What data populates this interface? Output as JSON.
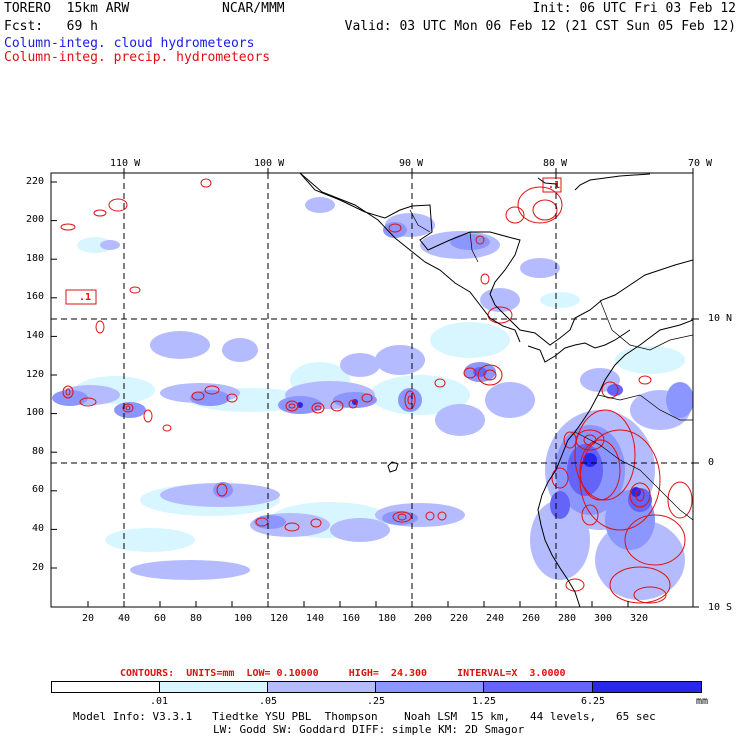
{
  "header": {
    "model": "TORERO  15km ARW",
    "org": "NCAR/MMM",
    "init": "Init: 06 UTC Fri 03 Feb 12",
    "fcst": "Fcst:   69 h",
    "valid": "Valid: 03 UTC Mon 06 Feb 12 (21 CST Sun 05 Feb 12)",
    "field1": "Column-integ. cloud hydrometeors",
    "field2": "Column-integ. precip. hydrometeors"
  },
  "map": {
    "top_lon_labels": [
      "110 W",
      "100 W",
      "90 W",
      "80 W",
      "70 W"
    ],
    "right_lat_labels": [
      "10 N",
      "0",
      "10 S"
    ],
    "left_ticks": [
      "220",
      "200",
      "180",
      "160",
      "140",
      "120",
      "100",
      "80",
      "60",
      "40",
      "20"
    ],
    "bottom_ticks": [
      "20",
      "40",
      "60",
      "80",
      "100",
      "120",
      "140",
      "160",
      "180",
      "200",
      "220",
      "240",
      "260",
      "280",
      "300",
      "320"
    ],
    "contour_labels": [
      ".1",
      ".1"
    ]
  },
  "contours_info": {
    "text": "CONTOURS:  UNITS=mm  LOW= 0.10000     HIGH=  24.300     INTERVAL=X  3.0000"
  },
  "legend": {
    "ticks": [
      ".01",
      ".05",
      ".25",
      "1.25",
      "6.25"
    ],
    "unit": "mm",
    "colors": [
      "#ffffff",
      "#d8f6ff",
      "#b4bcff",
      "#8c96ff",
      "#6464f8",
      "#2828ec"
    ]
  },
  "footer": {
    "line1": "Model Info: V3.3.1   Tiedtke YSU PBL  Thompson    Noah LSM  15 km,   44 levels,   65 sec",
    "line2": "LW: Godd SW: Goddard DIFF: simple KM: 2D Smagor"
  },
  "colors": {
    "precip": "#e01010",
    "cloud_text": "#1a1ae6"
  }
}
